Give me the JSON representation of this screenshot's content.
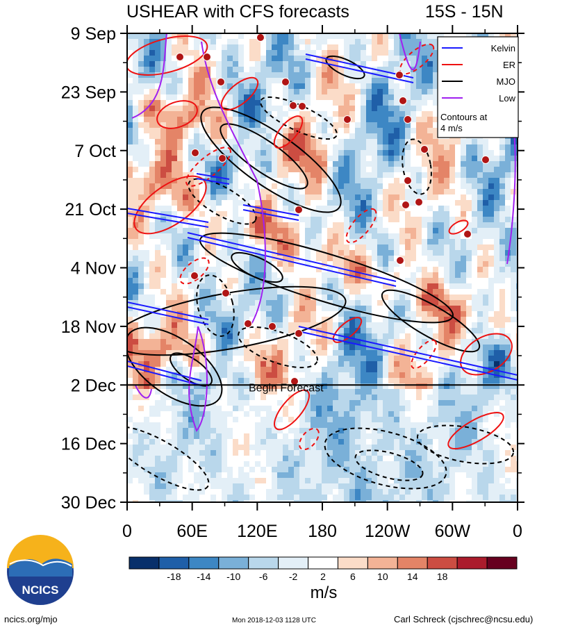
{
  "chart_data": {
    "type": "heatmap",
    "title": "USHEAR with CFS forecasts",
    "subtitle": "15S - 15N",
    "xlabel": "",
    "ylabel": "",
    "x_ticks": [
      "0",
      "60E",
      "120E",
      "180",
      "120W",
      "60W",
      "0"
    ],
    "y_ticks": [
      "9 Sep",
      "23 Sep",
      "7 Oct",
      "21 Oct",
      "4 Nov",
      "18 Nov",
      "2 Dec",
      "16 Dec",
      "30 Dec"
    ],
    "xlim": [
      0,
      360
    ],
    "ylim": [
      "9 Sep",
      "30 Dec"
    ],
    "forecast_start": "2 Dec",
    "forecast_label": "Begin Forecast",
    "legend": {
      "placement": "top-right",
      "entries": [
        {
          "name": "Kelvin",
          "color": "#1a1aff"
        },
        {
          "name": "ER",
          "color": "#ee1111"
        },
        {
          "name": "MJO",
          "color": "#000000"
        },
        {
          "name": "Low",
          "color": "#a020f0"
        }
      ],
      "note": [
        "Contours at",
        "4 m/s"
      ]
    },
    "colorbar": {
      "label": "m/s",
      "tick_labels": [
        "-18",
        "-14",
        "-10",
        "-6",
        "-2",
        "2",
        "6",
        "10",
        "14",
        "18"
      ],
      "colors": [
        "#08306b",
        "#1f5fa8",
        "#3d87c4",
        "#7ab0d8",
        "#b9d7eb",
        "#e3eff7",
        "#ffffff",
        "#fbdcc8",
        "#f3b396",
        "#e48467",
        "#cc4d42",
        "#ab1c2c",
        "#67001f"
      ]
    }
  },
  "logo": {
    "text": "NCICS"
  },
  "footer": {
    "left": "ncics.org/mjo",
    "center": "Mon 2018-12-03 1128 UTC",
    "right": "Carl Schreck (cjschrec@ncsu.edu)"
  }
}
